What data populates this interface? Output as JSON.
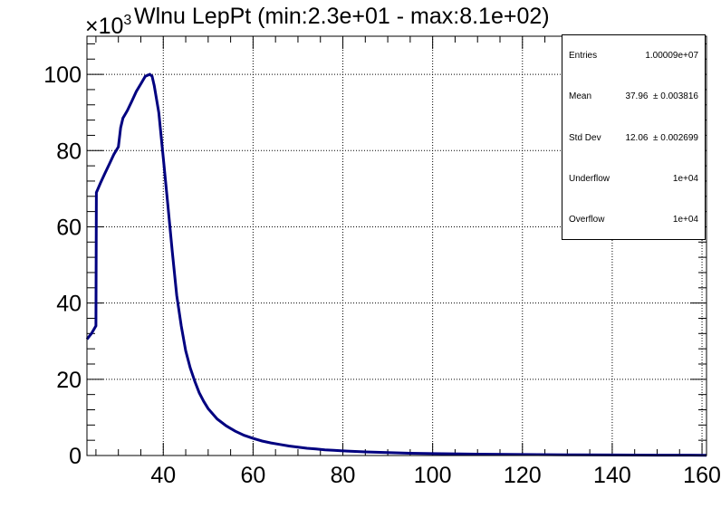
{
  "chart_data": {
    "type": "line",
    "title": "Wlnu LepPt (min:2.3e+01 - max:8.1e+02)",
    "xlabel": "",
    "ylabel": "",
    "y_multiplier": "×10",
    "y_multiplier_exponent": "3",
    "xlim": [
      23,
      161
    ],
    "ylim": [
      0,
      110
    ],
    "x_ticks": [
      40,
      60,
      80,
      100,
      120,
      140,
      160
    ],
    "y_ticks": [
      0,
      20,
      40,
      60,
      80,
      100
    ],
    "grid": true,
    "line_color": "#000080",
    "series": [
      {
        "x": [
          23,
          24,
          25,
          25.1,
          26,
          27,
          28,
          29,
          30,
          30.5,
          31,
          32,
          33,
          34,
          35,
          36,
          37,
          37.5,
          38,
          39,
          40,
          41,
          42,
          43,
          44,
          45,
          46,
          47,
          48,
          49,
          50,
          52,
          54,
          56,
          58,
          60,
          62,
          64,
          66,
          68,
          70,
          72,
          74,
          76,
          78,
          80,
          85,
          90,
          95,
          100,
          110,
          120,
          130,
          140,
          150,
          161
        ],
        "y": [
          30.5,
          32,
          34,
          69,
          71.5,
          74,
          76.5,
          79,
          81,
          86,
          88.5,
          90.5,
          93,
          95.5,
          97.5,
          99.5,
          100,
          99.5,
          97,
          90,
          78,
          66,
          53.5,
          42,
          34,
          27.5,
          23,
          19.5,
          16.5,
          14.2,
          12.3,
          9.6,
          7.8,
          6.4,
          5.3,
          4.5,
          3.8,
          3.3,
          2.9,
          2.5,
          2.2,
          1.9,
          1.7,
          1.5,
          1.35,
          1.2,
          0.95,
          0.75,
          0.6,
          0.5,
          0.35,
          0.25,
          0.18,
          0.14,
          0.1,
          0.08
        ]
      }
    ]
  },
  "stats": {
    "entries_label": "Entries",
    "entries_value": "1.00009e+07",
    "mean_label": "Mean",
    "mean_value": "37.96  ± 0.003816",
    "stddev_label": "Std Dev",
    "stddev_value": "12.06  ± 0.002699",
    "underflow_label": "Underflow",
    "underflow_value": "1e+04",
    "overflow_label": "Overflow",
    "overflow_value": "1e+04"
  }
}
